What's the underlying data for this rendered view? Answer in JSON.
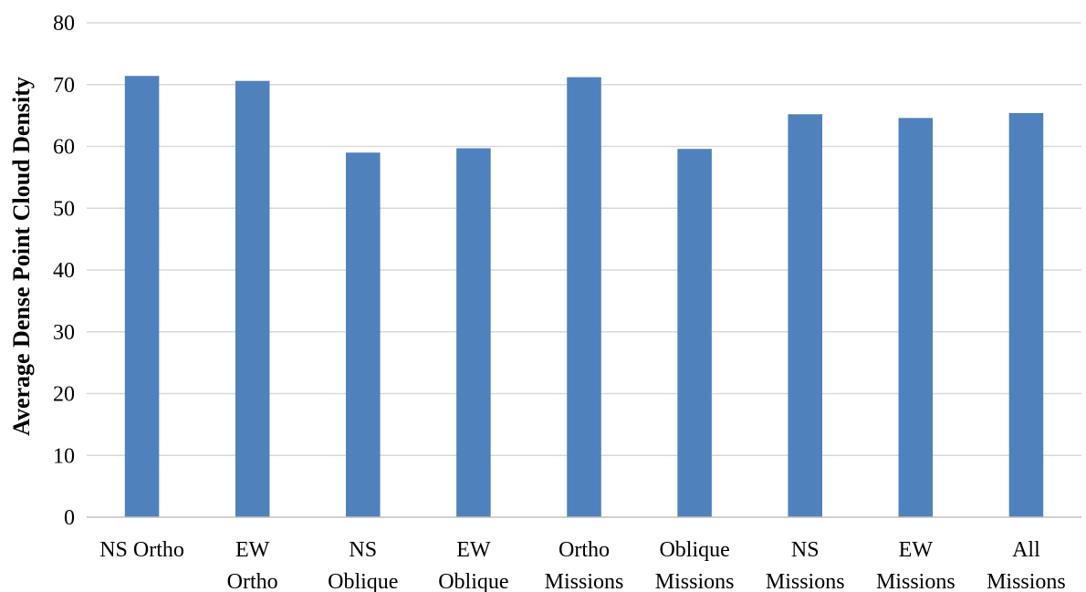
{
  "chart_data": {
    "type": "bar",
    "title": "",
    "xlabel": "",
    "ylabel": "Average Dense Point Cloud Density",
    "categories": [
      [
        "NS Ortho"
      ],
      [
        "EW",
        "Ortho"
      ],
      [
        "NS",
        "Oblique"
      ],
      [
        "EW",
        "Oblique"
      ],
      [
        "Ortho",
        "Missions"
      ],
      [
        "Oblique",
        "Missions"
      ],
      [
        "NS",
        "Missions"
      ],
      [
        "EW",
        "Missions"
      ],
      [
        "All",
        "Missions"
      ]
    ],
    "values": [
      71.4,
      70.6,
      59.0,
      59.7,
      71.2,
      59.6,
      65.2,
      64.6,
      65.4
    ],
    "ylim": [
      0,
      80
    ],
    "yticks": [
      0,
      10,
      20,
      30,
      40,
      50,
      60,
      70,
      80
    ],
    "grid": true,
    "bar_color": "#4F81BD",
    "grid_color": "#D9D9D9",
    "axis_color": "#BFBFBF"
  }
}
